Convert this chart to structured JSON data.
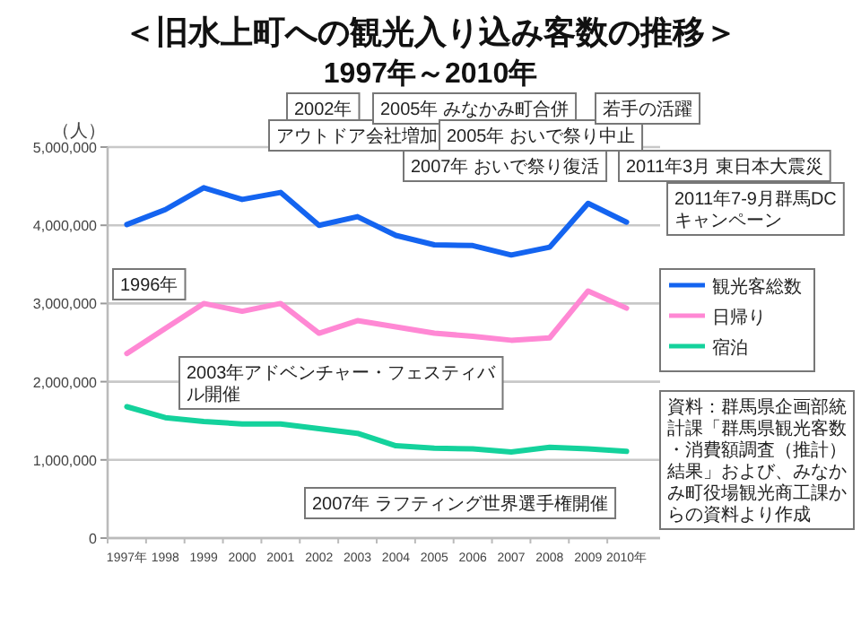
{
  "chart_data": {
    "type": "line",
    "title": "＜旧水上町への観光入り込み客数の推移＞",
    "subtitle": "1997年～2010年",
    "ylabel": "（人）",
    "categories": [
      "1997年",
      "1998",
      "1999",
      "2000",
      "2001",
      "2002",
      "2003",
      "2004",
      "2005",
      "2006",
      "2007",
      "2008",
      "2009",
      "2010年"
    ],
    "series": [
      {
        "name": "観光客総数",
        "color": "#1464f0",
        "values": [
          4010000,
          4200000,
          4480000,
          4330000,
          4420000,
          4000000,
          4110000,
          3870000,
          3750000,
          3740000,
          3620000,
          3720000,
          4280000,
          4040000
        ]
      },
      {
        "name": "日帰り",
        "color": "#ff88d4",
        "values": [
          2360000,
          2680000,
          3000000,
          2900000,
          3000000,
          2620000,
          2780000,
          2700000,
          2620000,
          2580000,
          2530000,
          2560000,
          3160000,
          2940000
        ]
      },
      {
        "name": "宿泊",
        "color": "#14d29c",
        "values": [
          1680000,
          1540000,
          1490000,
          1460000,
          1460000,
          1400000,
          1340000,
          1180000,
          1150000,
          1140000,
          1100000,
          1160000,
          1140000,
          1110000
        ]
      }
    ],
    "ylim": [
      0,
      5000000
    ],
    "yticks": [
      0,
      {
        "value": 1000000,
        "label": "1,000,000"
      },
      {
        "value": 2000000,
        "label": "2,000,000"
      },
      {
        "value": 3000000,
        "label": "3,000,000"
      },
      {
        "value": 4000000,
        "label": "4,000,000"
      },
      {
        "value": 5000000,
        "label": "5,000,000"
      }
    ],
    "grid": "y",
    "legend": "right",
    "annotations": [
      "1996年",
      "2002年",
      "アウトドア会社増加",
      "2003年アドベンチャー・フェスティバル開催",
      "2005年 みなかみ町合併",
      "2005年 おいで祭り中止",
      "若手の活躍",
      "2007年 おいで祭り復活",
      "2007年 ラフティング世界選手権開催",
      "2011年3月 東日本大震災",
      "2011年7-9月群馬DCキャンペーン",
      "資料：群馬県企画部統計課「群馬県観光客数・消費額調査（推計）結果」および、みなかみ町役場観光商工課からの資料より作成"
    ]
  }
}
